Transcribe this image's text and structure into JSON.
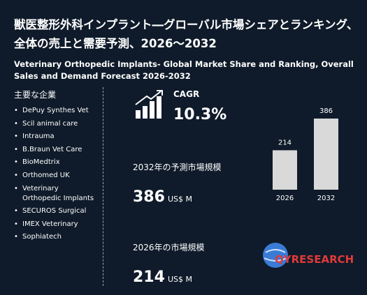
{
  "header": {
    "title": "獣医整形外科インプラント―グローバル市場シェアとランキング、全体の売上と需要予測、2026～2032",
    "subtitle": "Veterinary Orthopedic Implants- Global Market Share and Ranking, Overall Sales and Demand Forecast 2026-2032"
  },
  "companies": {
    "heading": "主要な企業",
    "items": [
      "DePuy Synthes Vet",
      "Scil animal care",
      "Intrauma",
      "B.Braun Vet Care",
      "BioMedtrix",
      "Orthomed UK",
      "Veterinary Orthopedic Implants",
      "SECUROS Surgical",
      "IMEX Veterinary",
      "Sophiatech"
    ]
  },
  "cagr": {
    "label": "CAGR",
    "value": "10.3%"
  },
  "forecast": {
    "label": "2032年の予測市場規模",
    "value": "386",
    "unit": "US$ M"
  },
  "current": {
    "label": "2026年の市場規模",
    "value": "214",
    "unit": "US$ M"
  },
  "chart_data": {
    "type": "bar",
    "categories": [
      "2026",
      "2032"
    ],
    "values": [
      214,
      386
    ],
    "color": "#d9d9d9"
  },
  "logo": {
    "text": "QYRESEARCH"
  }
}
